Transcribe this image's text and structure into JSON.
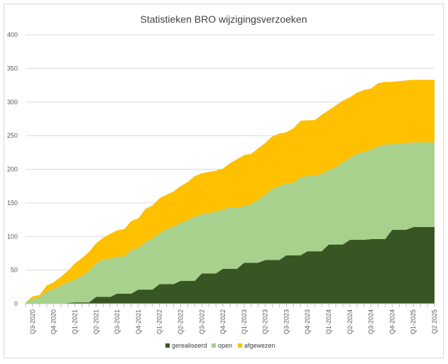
{
  "chart_data": {
    "type": "area",
    "stacked": true,
    "title": "Statistieken BRO wijzigingsverzoeken",
    "xlabel": "",
    "ylabel": "",
    "ylim": [
      0,
      400
    ],
    "yticks": [
      0,
      50,
      100,
      150,
      200,
      250,
      300,
      350,
      400
    ],
    "grid": true,
    "legend": "bottom",
    "categories": [
      "",
      "Q3-2020",
      "",
      "",
      "Q4-2020",
      "",
      "",
      "Q1-2021",
      "",
      "",
      "Q2-2021",
      "",
      "",
      "Q3-2021",
      "",
      "",
      "Q4-2021",
      "",
      "",
      "Q1-2022",
      "",
      "",
      "Q2-2022",
      "",
      "",
      "Q3-2022",
      "",
      "",
      "Q4-2022",
      "",
      "",
      "Q1-2023",
      "",
      "",
      "Q2-2023",
      "",
      "",
      "Q3-2023",
      "",
      "",
      "Q4-2023",
      "",
      "",
      "Q1-2024",
      "",
      "",
      "Q2-2024",
      "",
      "",
      "Q3-2024",
      "",
      "",
      "Q4-2024",
      "",
      "",
      "Q1-2025",
      "",
      "",
      "Q2 2025"
    ],
    "series": [
      {
        "name": "gerealiseerd",
        "color": "#375623",
        "values": [
          0,
          0,
          0,
          0,
          0,
          0,
          1,
          2,
          2,
          2,
          10,
          10,
          10,
          15,
          15,
          15,
          21,
          21,
          21,
          29,
          29,
          29,
          34,
          34,
          34,
          45,
          45,
          45,
          52,
          52,
          52,
          61,
          61,
          61,
          65,
          65,
          65,
          72,
          72,
          72,
          78,
          78,
          78,
          88,
          88,
          88,
          95,
          95,
          95,
          96,
          96,
          96,
          110,
          110,
          110,
          114,
          114,
          114,
          114
        ]
      },
      {
        "name": "open",
        "color": "#A9D18E",
        "values": [
          2,
          7,
          10,
          18,
          22,
          27,
          31,
          34,
          39,
          47,
          50,
          56,
          57,
          55,
          55,
          65,
          62,
          71,
          76,
          76,
          82,
          86,
          86,
          90,
          96,
          88,
          90,
          92,
          88,
          91,
          91,
          84,
          87,
          94,
          97,
          106,
          110,
          107,
          108,
          116,
          112,
          112,
          115,
          111,
          115,
          122,
          122,
          128,
          131,
          133,
          138,
          141,
          127,
          128,
          129,
          126,
          126,
          126,
          126
        ]
      },
      {
        "name": "afgewezen",
        "color": "#FFC000",
        "values": [
          0,
          4,
          3,
          9,
          10,
          13,
          17,
          24,
          27,
          28,
          30,
          32,
          37,
          39,
          41,
          43,
          44,
          49,
          49,
          52,
          51,
          52,
          55,
          57,
          60,
          61,
          61,
          61,
          61,
          66,
          72,
          76,
          75,
          76,
          77,
          78,
          78,
          76,
          81,
          84,
          83,
          83,
          88,
          89,
          92,
          92,
          90,
          91,
          92,
          91,
          94,
          93,
          93,
          93,
          93,
          93,
          93,
          93,
          93
        ]
      }
    ]
  }
}
